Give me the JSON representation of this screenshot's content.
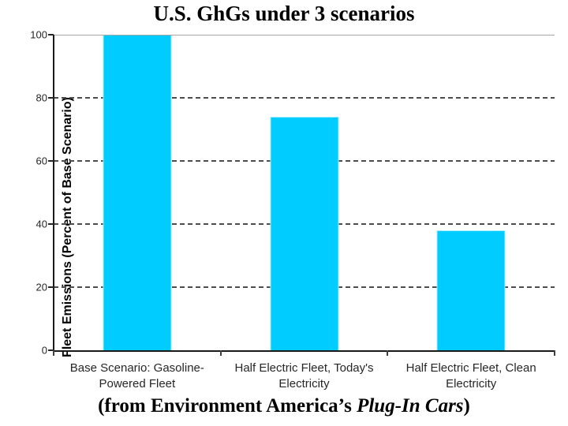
{
  "title": "U.S. GhGs under 3 scenarios",
  "y_axis_title": "Fleet Emissions (Percent of Base Scenario)",
  "caption": {
    "prefix": "(from Environment America’s ",
    "italic": "Plug-In Cars",
    "suffix": ")"
  },
  "chart_data": {
    "type": "bar",
    "title": "U.S. GhGs under 3 scenarios",
    "categories": [
      "Base Scenario: Gasoline-Powered Fleet",
      "Half Electric Fleet, Today's Electricity",
      "Half Electric Fleet, Clean Electricity"
    ],
    "category_lines": [
      [
        "Base Scenario: Gasoline-",
        "Powered Fleet"
      ],
      [
        "Half Electric Fleet, Today's",
        "Electricity"
      ],
      [
        "Half Electric Fleet, Clean",
        "Electricity"
      ]
    ],
    "values": [
      100,
      74,
      38
    ],
    "xlabel": "",
    "ylabel": "Fleet Emissions (Percent of Base Scenario)",
    "ylim": [
      0,
      100
    ],
    "yticks": [
      0,
      20,
      40,
      60,
      80,
      100
    ],
    "grid": "horizontal-dashed",
    "legend_position": "none",
    "bar_color": "#00ccff",
    "gridline_color": "#4d4d4d",
    "axis_color": "#1a1a1a",
    "top_border_color": "#a6a6a6"
  }
}
